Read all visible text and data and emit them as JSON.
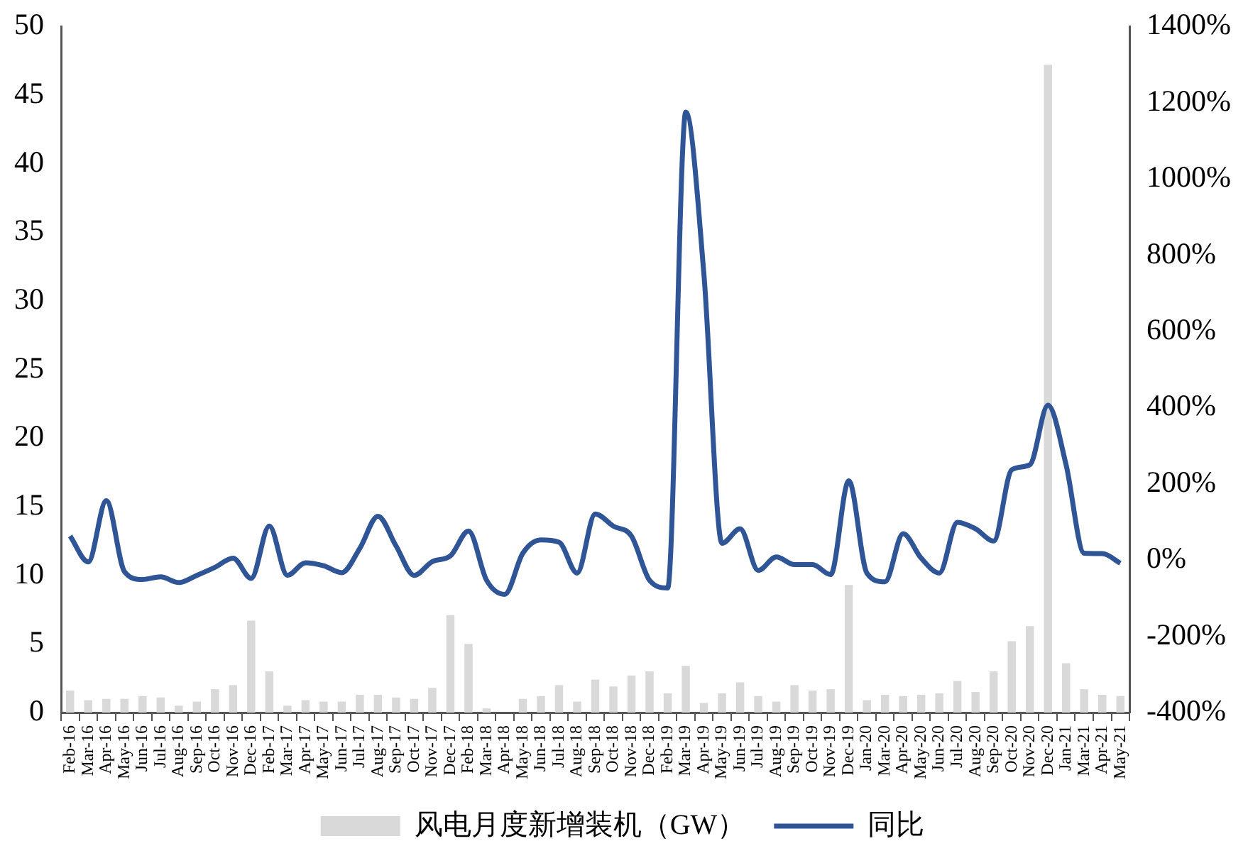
{
  "chart_data": {
    "type": "bar",
    "categories": [
      "Feb-16",
      "Mar-16",
      "Apr-16",
      "May-16",
      "Jun-16",
      "Jul-16",
      "Aug-16",
      "Sep-16",
      "Oct-16",
      "Nov-16",
      "Dec-16",
      "Feb-17",
      "Mar-17",
      "Apr-17",
      "May-17",
      "Jun-17",
      "Jul-17",
      "Aug-17",
      "Sep-17",
      "Oct-17",
      "Nov-17",
      "Dec-17",
      "Feb-18",
      "Mar-18",
      "Apr-18",
      "May-18",
      "Jun-18",
      "Jul-18",
      "Aug-18",
      "Sep-18",
      "Oct-18",
      "Nov-18",
      "Dec-18",
      "Feb-19",
      "Mar-19",
      "Apr-19",
      "May-19",
      "Jun-19",
      "Jul-19",
      "Aug-19",
      "Sep-19",
      "Oct-19",
      "Nov-19",
      "Dec-19",
      "Jan-20",
      "Mar-20",
      "Apr-20",
      "May-20",
      "Jun-20",
      "Jul-20",
      "Aug-20",
      "Sep-20",
      "Oct-20",
      "Nov-20",
      "Dec-20",
      "Jan-21",
      "Mar-21",
      "Apr-21",
      "May-21"
    ],
    "series": [
      {
        "name": "风电月度新增装机（GW）",
        "color": "#d9d9d9",
        "values": [
          1.6,
          0.9,
          1.0,
          1.0,
          1.2,
          1.1,
          0.5,
          0.8,
          1.7,
          2.0,
          6.7,
          3.0,
          0.5,
          0.9,
          0.8,
          0.8,
          1.3,
          1.3,
          1.1,
          1.0,
          1.8,
          7.1,
          5.0,
          0.3,
          0,
          1.0,
          1.2,
          2.0,
          0.8,
          2.4,
          1.9,
          2.7,
          3.0,
          1.4,
          3.4,
          0.7,
          1.4,
          2.2,
          1.2,
          0.8,
          2.0,
          1.6,
          1.7,
          9.3,
          0.9,
          1.3,
          1.2,
          1.3,
          1.4,
          2.3,
          1.5,
          3.0,
          5.2,
          6.3,
          47.2,
          3.6,
          1.7,
          1.3,
          1.2
        ]
      },
      {
        "name": "同比",
        "type": "line",
        "axis": "y2",
        "color": "#2f5597",
        "values": [
          63,
          -5,
          156,
          -30,
          -51,
          -44,
          -59,
          -40,
          -19,
          5,
          -48,
          89,
          -40,
          -7,
          -15,
          -33,
          31,
          115,
          37,
          -40,
          -4,
          11,
          76,
          -53,
          -90,
          18,
          53,
          47,
          -34,
          121,
          89,
          63,
          -53,
          -73,
          1175,
          750,
          44,
          82,
          -27,
          8,
          -12,
          -12,
          -38,
          208,
          -34,
          -57,
          69,
          5,
          -34,
          99,
          82,
          50,
          237,
          250,
          406,
          250,
          18,
          17,
          -8
        ]
      }
    ],
    "ylim": [
      0,
      50
    ],
    "yticks": [
      0,
      5,
      10,
      15,
      20,
      25,
      30,
      35,
      40,
      45,
      50
    ],
    "y2lim": [
      -400,
      1400
    ],
    "y2ticks": [
      {
        "value": -400,
        "label": "-400%"
      },
      {
        "value": -200,
        "label": "-200%"
      },
      {
        "value": 0,
        "label": "0%"
      },
      {
        "value": 200,
        "label": "200%"
      },
      {
        "value": 400,
        "label": "400%"
      },
      {
        "value": 600,
        "label": "600%"
      },
      {
        "value": 800,
        "label": "800%"
      },
      {
        "value": 1000,
        "label": "1000%"
      },
      {
        "value": 1200,
        "label": "1200%"
      },
      {
        "value": 1400,
        "label": "1400%"
      }
    ],
    "grid": false,
    "legend": "bottom",
    "marker": "none",
    "line_style": "solid"
  }
}
